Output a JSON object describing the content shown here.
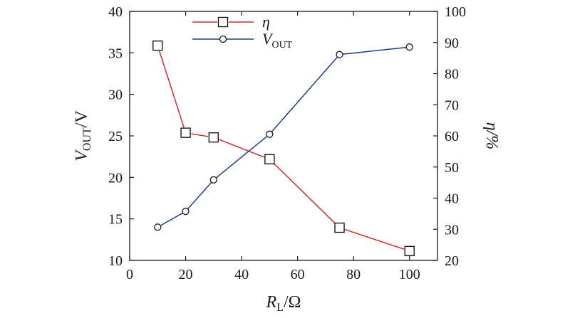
{
  "chart_data": {
    "type": "line",
    "x": [
      10,
      20,
      30,
      50,
      75,
      100
    ],
    "xlabel": {
      "main": "R",
      "sub": "L",
      "unit": "/Ω"
    },
    "ylabel_left": {
      "main": "V",
      "sub": "OUT",
      "unit": "/V"
    },
    "ylabel_right": "η/%",
    "xlim": [
      0,
      110
    ],
    "ylim_left": [
      10,
      40
    ],
    "ylim_right": [
      20,
      100
    ],
    "xticks": [
      "0",
      "20",
      "40",
      "60",
      "80",
      "100"
    ],
    "yticks_left": [
      "10",
      "15",
      "20",
      "25",
      "30",
      "35",
      "40"
    ],
    "yticks_right": [
      "20",
      "30",
      "40",
      "50",
      "60",
      "70",
      "80",
      "90",
      "100"
    ],
    "grid": false,
    "legend_position": "top-center",
    "series": [
      {
        "name": "η",
        "axis": "right",
        "marker": "square",
        "color": "#d42a2a",
        "values": [
          89.0,
          61.0,
          59.5,
          52.5,
          30.5,
          23.0
        ]
      },
      {
        "name": "V",
        "name_sub": "OUT",
        "axis": "left",
        "marker": "circle",
        "color": "#1f3b8c",
        "values": [
          14.0,
          15.9,
          19.7,
          25.2,
          34.8,
          35.7
        ]
      }
    ]
  }
}
